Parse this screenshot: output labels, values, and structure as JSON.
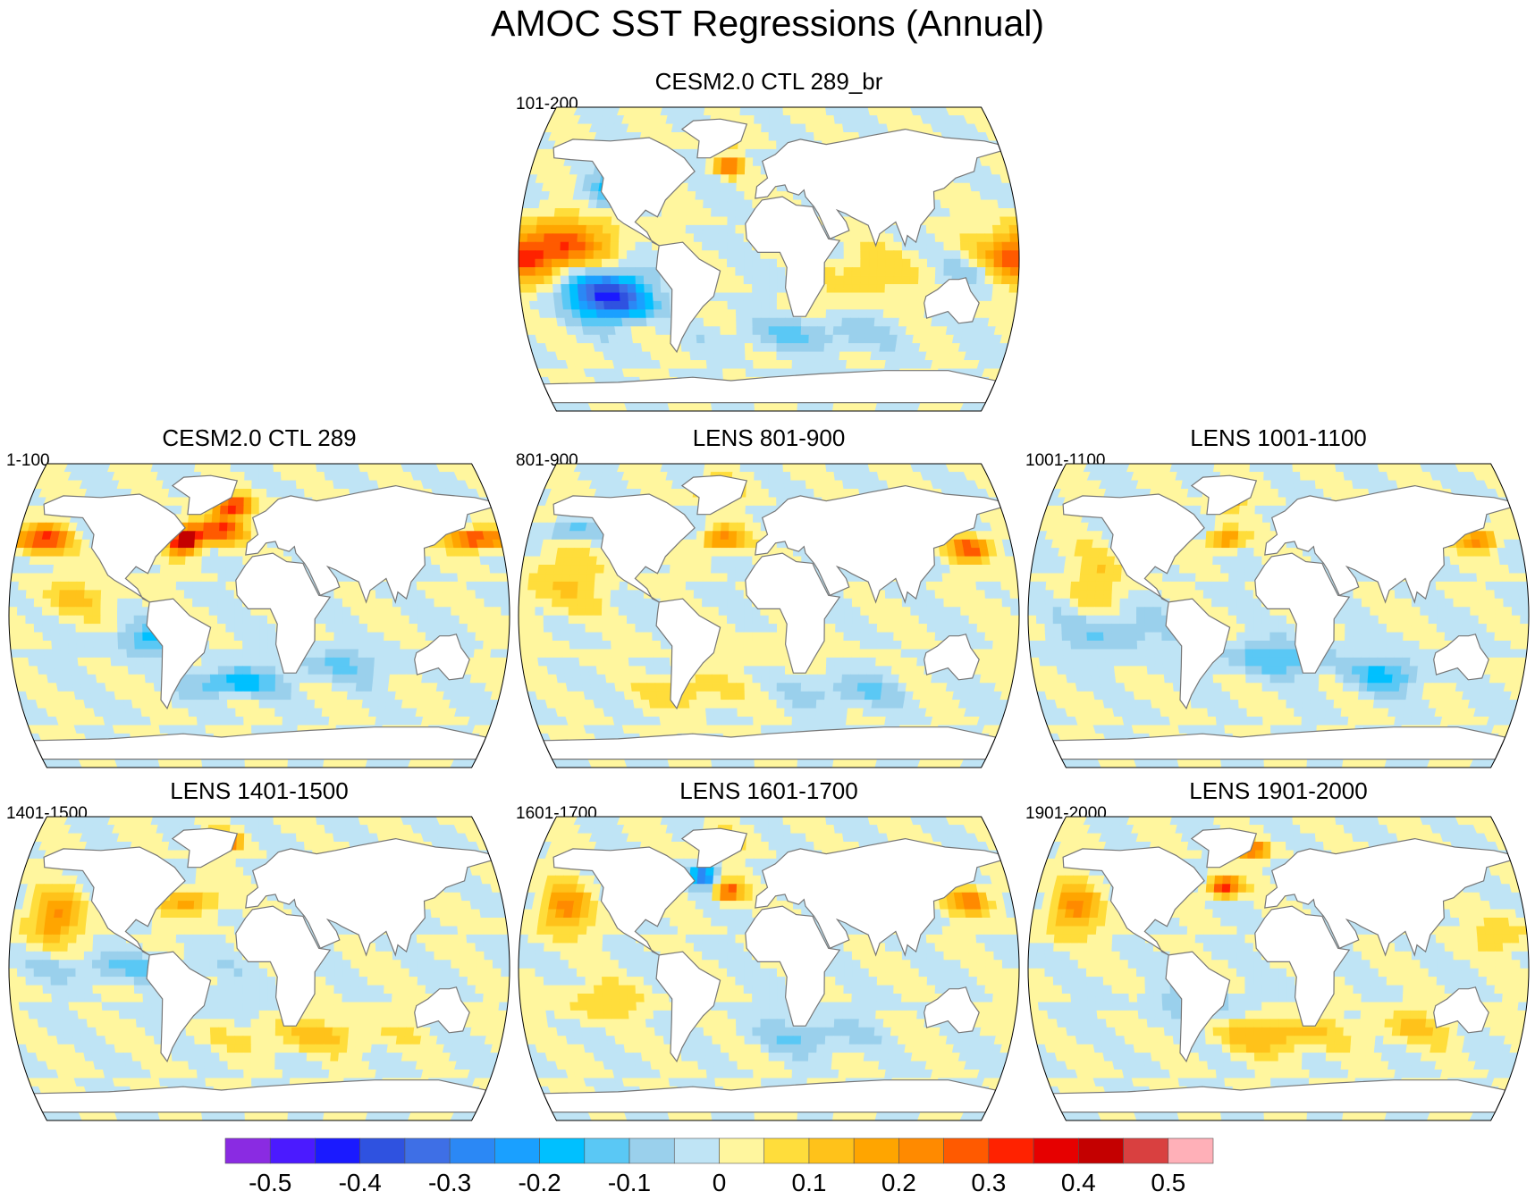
{
  "title": "AMOC SST Regressions (Annual)",
  "chart_data": {
    "type": "map-contour",
    "projection": "Robinson",
    "variable": "SST regression on AMOC",
    "colors": {
      "land": "#ffffff",
      "coast": "#777777",
      "palette": [
        "#8a2be2",
        "#4b1aff",
        "#1a1aff",
        "#2f52e0",
        "#3e6fe6",
        "#2b88f5",
        "#1aa0ff",
        "#00c0ff",
        "#5ac8f5",
        "#9ad0ec",
        "#bfe4f5",
        "#fff69e",
        "#ffdd3b",
        "#ffc21a",
        "#ffa500",
        "#ff8a00",
        "#ff5a00",
        "#ff2200",
        "#e60000",
        "#c40000",
        "#d94040",
        "#ffb0b8"
      ]
    },
    "colorbar": {
      "min": -0.55,
      "step": 0.05,
      "tick_labels": [
        "-0.5",
        "-0.4",
        "-0.3",
        "-0.2",
        "-0.1",
        "0",
        "0.1",
        "0.2",
        "0.3",
        "0.4",
        "0.5"
      ]
    },
    "panels": [
      {
        "title": "CESM2.0 CTL 289_br",
        "years": "101-200",
        "blobs": [
          [
            -150,
            5,
            40,
            18,
            0.3
          ],
          [
            -125,
            -15,
            30,
            16,
            -0.25
          ],
          [
            -110,
            -25,
            25,
            12,
            -0.3
          ],
          [
            -40,
            72,
            12,
            5,
            0.4
          ],
          [
            -30,
            55,
            10,
            5,
            0.3
          ],
          [
            170,
            0,
            30,
            12,
            0.2
          ],
          [
            150,
            -5,
            20,
            12,
            -0.15
          ],
          [
            30,
            -45,
            60,
            10,
            -0.1
          ],
          [
            -120,
            40,
            20,
            10,
            -0.15
          ],
          [
            70,
            -10,
            30,
            15,
            0.1
          ]
        ]
      },
      {
        "title": "CESM2.0 CTL 289",
        "years": "1-100",
        "blobs": [
          [
            -55,
            45,
            12,
            8,
            0.5
          ],
          [
            -20,
            65,
            15,
            6,
            0.35
          ],
          [
            -30,
            50,
            18,
            8,
            0.3
          ],
          [
            160,
            45,
            20,
            6,
            0.35
          ],
          [
            -160,
            45,
            20,
            8,
            0.3
          ],
          [
            -80,
            -15,
            25,
            10,
            -0.15
          ],
          [
            -20,
            -40,
            30,
            8,
            -0.2
          ],
          [
            60,
            -30,
            40,
            10,
            -0.1
          ],
          [
            -130,
            10,
            30,
            10,
            0.1
          ]
        ]
      },
      {
        "title": "LENS 801-900",
        "years": "801-900",
        "blobs": [
          [
            -40,
            75,
            14,
            5,
            0.4
          ],
          [
            -35,
            45,
            15,
            7,
            0.25
          ],
          [
            150,
            40,
            15,
            8,
            0.3
          ],
          [
            -150,
            20,
            30,
            20,
            0.1
          ],
          [
            0,
            -20,
            40,
            10,
            0.05
          ],
          [
            -60,
            -45,
            30,
            10,
            0.1
          ],
          [
            60,
            -45,
            40,
            10,
            -0.1
          ],
          [
            -150,
            50,
            20,
            6,
            -0.15
          ]
        ]
      },
      {
        "title": "LENS 1001-1100",
        "years": "1001-1100",
        "blobs": [
          [
            -40,
            70,
            12,
            6,
            0.3
          ],
          [
            -40,
            45,
            12,
            6,
            0.25
          ],
          [
            150,
            45,
            15,
            6,
            0.25
          ],
          [
            -120,
            -10,
            40,
            15,
            -0.1
          ],
          [
            0,
            -25,
            40,
            10,
            -0.15
          ],
          [
            80,
            -35,
            30,
            10,
            -0.15
          ],
          [
            -130,
            20,
            20,
            20,
            0.1
          ]
        ]
      },
      {
        "title": "LENS 1401-1500",
        "years": "1401-1500",
        "blobs": [
          [
            -30,
            75,
            14,
            5,
            0.4
          ],
          [
            -50,
            40,
            20,
            8,
            0.2
          ],
          [
            -150,
            30,
            20,
            15,
            0.2
          ],
          [
            -100,
            0,
            60,
            8,
            -0.1
          ],
          [
            40,
            -40,
            60,
            10,
            0.1
          ],
          [
            -30,
            -20,
            30,
            10,
            -0.05
          ]
        ]
      },
      {
        "title": "LENS 1601-1700",
        "years": "1601-1700",
        "blobs": [
          [
            -40,
            75,
            14,
            5,
            0.35
          ],
          [
            -50,
            55,
            10,
            6,
            -0.3
          ],
          [
            -30,
            45,
            10,
            6,
            0.3
          ],
          [
            -150,
            35,
            20,
            15,
            0.2
          ],
          [
            150,
            40,
            15,
            8,
            0.25
          ],
          [
            -120,
            -20,
            30,
            10,
            0.1
          ],
          [
            30,
            -40,
            40,
            10,
            -0.1
          ]
        ]
      },
      {
        "title": "LENS 1901-2000",
        "years": "1901-2000",
        "blobs": [
          [
            -40,
            48,
            12,
            6,
            0.35
          ],
          [
            -20,
            70,
            12,
            5,
            0.3
          ],
          [
            -150,
            35,
            20,
            15,
            0.2
          ],
          [
            0,
            -40,
            40,
            10,
            0.15
          ],
          [
            -60,
            -20,
            30,
            10,
            -0.1
          ],
          [
            100,
            -35,
            30,
            10,
            0.1
          ],
          [
            160,
            20,
            20,
            10,
            0.1
          ]
        ]
      }
    ]
  }
}
